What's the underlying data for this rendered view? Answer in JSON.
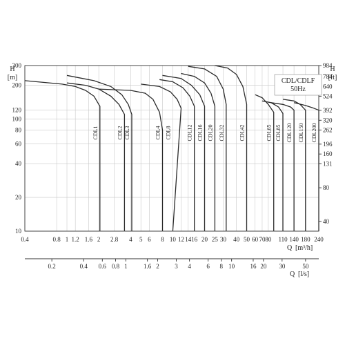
{
  "chart_data": {
    "type": "line",
    "title": "",
    "legend_box": {
      "line1": "CDL/CDLF",
      "line2": "50Hz"
    },
    "x_primary": {
      "label": "Q",
      "unit": "[m³/h]",
      "scale": "log",
      "range": [
        0.4,
        240
      ],
      "ticks": [
        0.4,
        0.8,
        1,
        1.2,
        1.6,
        2,
        2.8,
        4,
        5,
        6,
        8,
        10,
        12,
        14,
        16,
        20,
        25,
        30,
        40,
        50,
        60,
        70,
        80,
        110,
        140,
        180,
        240
      ]
    },
    "x_secondary": {
      "label": "Q",
      "unit": "[l/s]",
      "scale": "log",
      "ticks": [
        0.2,
        0.4,
        0.6,
        0.8,
        1,
        1.6,
        2,
        3,
        4,
        6,
        8,
        10,
        16,
        20,
        30,
        50
      ]
    },
    "y_left": {
      "label": "H",
      "unit": "[m]",
      "scale": "log",
      "range": [
        10,
        300
      ],
      "ticks": [
        10,
        20,
        40,
        60,
        80,
        100,
        120,
        200,
        300
      ]
    },
    "y_right": {
      "label": "H",
      "unit": "[ft]",
      "ticks": [
        40,
        80,
        131,
        160,
        196,
        262,
        320,
        392,
        524,
        640,
        784,
        984
      ]
    },
    "grid": true,
    "series": [
      {
        "name": "CDL1",
        "x": [
          0.4,
          0.9,
          1.2,
          1.5,
          1.8,
          2.05,
          2.05
        ],
        "y": [
          220,
          205,
          195,
          180,
          160,
          130,
          10
        ]
      },
      {
        "name": "CDL2",
        "x": [
          1,
          1.5,
          2,
          2.6,
          3.1,
          3.5,
          3.5
        ],
        "y": [
          210,
          200,
          185,
          160,
          135,
          110,
          10
        ]
      },
      {
        "name": "CDL3",
        "x": [
          1,
          1.8,
          2.6,
          3.3,
          3.8,
          4.1,
          4.1
        ],
        "y": [
          245,
          220,
          195,
          165,
          135,
          110,
          10
        ]
      },
      {
        "name": "CDL4",
        "x": [
          2,
          4,
          5.5,
          6.5,
          7.5,
          8,
          8
        ],
        "y": [
          185,
          180,
          170,
          150,
          115,
          80,
          10
        ]
      },
      {
        "name": "CDL8",
        "x": [
          5,
          7.5,
          9.5,
          11,
          12,
          12,
          10
        ],
        "y": [
          205,
          195,
          175,
          150,
          125,
          125,
          10
        ]
      },
      {
        "name": "CDL12",
        "x": [
          7.5,
          10,
          12.5,
          14.5,
          16,
          16
        ],
        "y": [
          225,
          215,
          190,
          160,
          130,
          10
        ]
      },
      {
        "name": "CDL16",
        "x": [
          8,
          12,
          15,
          18,
          20,
          20
        ],
        "y": [
          245,
          230,
          200,
          165,
          130,
          10
        ]
      },
      {
        "name": "CDL20",
        "x": [
          12,
          16,
          20,
          23,
          25,
          25
        ],
        "y": [
          255,
          240,
          210,
          170,
          130,
          10
        ]
      },
      {
        "name": "CDL32",
        "x": [
          14,
          20,
          26,
          30,
          32,
          32
        ],
        "y": [
          295,
          280,
          240,
          185,
          135,
          10
        ]
      },
      {
        "name": "CDL42",
        "x": [
          25,
          33,
          40,
          46,
          50,
          50
        ],
        "y": [
          300,
          285,
          250,
          195,
          135,
          10
        ]
      },
      {
        "name": "CDL65",
        "x": [
          60,
          70,
          80,
          90,
          90
        ],
        "y": [
          165,
          155,
          135,
          115,
          10
        ]
      },
      {
        "name": "CDL85",
        "x": [
          70,
          85,
          100,
          110,
          110
        ],
        "y": [
          145,
          140,
          128,
          112,
          10
        ]
      },
      {
        "name": "CDL120",
        "x": [
          85,
          110,
          130,
          140,
          140
        ],
        "y": [
          140,
          135,
          128,
          120,
          10
        ]
      },
      {
        "name": "CDL150",
        "x": [
          110,
          140,
          160,
          180,
          180
        ],
        "y": [
          150,
          145,
          135,
          120,
          10
        ]
      },
      {
        "name": "CDL200",
        "x": [
          140,
          180,
          210,
          240,
          240
        ],
        "y": [
          140,
          132,
          126,
          120,
          10
        ]
      }
    ]
  }
}
